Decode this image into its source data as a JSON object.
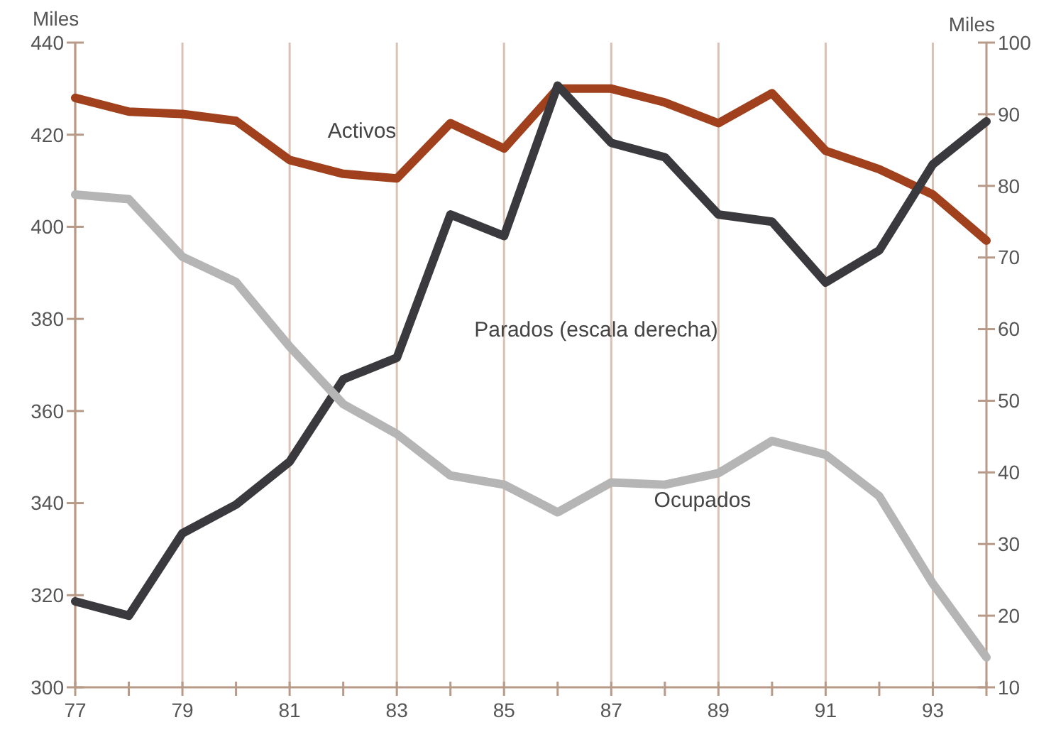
{
  "chart_data": {
    "type": "line",
    "ylabel": "Miles",
    "y2label": "Miles",
    "x": [
      77,
      78,
      79,
      80,
      81,
      82,
      83,
      84,
      85,
      86,
      87,
      88,
      89,
      90,
      91,
      92,
      93,
      94
    ],
    "xlim": [
      77,
      94
    ],
    "xticks": [
      77,
      {
        "value": 78,
        "label": null
      },
      79,
      {
        "value": 80,
        "label": null
      },
      81,
      {
        "value": 82,
        "label": null
      },
      83,
      {
        "value": 84,
        "label": null
      },
      85,
      {
        "value": 86,
        "label": null
      },
      87,
      {
        "value": 88,
        "label": null
      },
      89,
      {
        "value": 90,
        "label": null
      },
      91,
      {
        "value": 92,
        "label": null
      },
      93,
      {
        "value": 94,
        "label": null
      }
    ],
    "ylim": [
      300,
      440
    ],
    "yticks": [
      300,
      320,
      340,
      360,
      380,
      400,
      420,
      440
    ],
    "y2lim": [
      10,
      100
    ],
    "y2ticks": [
      10,
      20,
      30,
      40,
      50,
      60,
      70,
      80,
      90,
      100
    ],
    "grid": "x",
    "marker": "none",
    "line_style": "solid",
    "series": [
      {
        "name": "Activos",
        "color": "#a0401c",
        "values": [
          428,
          425,
          424.5,
          423,
          414.5,
          411.5,
          410.5,
          422.5,
          417,
          430,
          430,
          427,
          422.5,
          429,
          416.5,
          412.5,
          407,
          397
        ]
      },
      {
        "name": "Parados (escala derecha)",
        "color": "#3a3a3e",
        "axis": "y2",
        "values": [
          22,
          20,
          31.5,
          35.5,
          41.5,
          53,
          56,
          76,
          73,
          94,
          86,
          84,
          76,
          75,
          66.5,
          71,
          83,
          89
        ]
      },
      {
        "name": "Ocupados",
        "color": "#b5b5b5",
        "values": [
          407,
          406,
          393.5,
          388,
          374,
          361.5,
          355,
          346,
          344,
          338,
          344.5,
          344,
          346.5,
          353.5,
          350.5,
          341.5,
          322.5,
          306.5
        ]
      }
    ]
  }
}
